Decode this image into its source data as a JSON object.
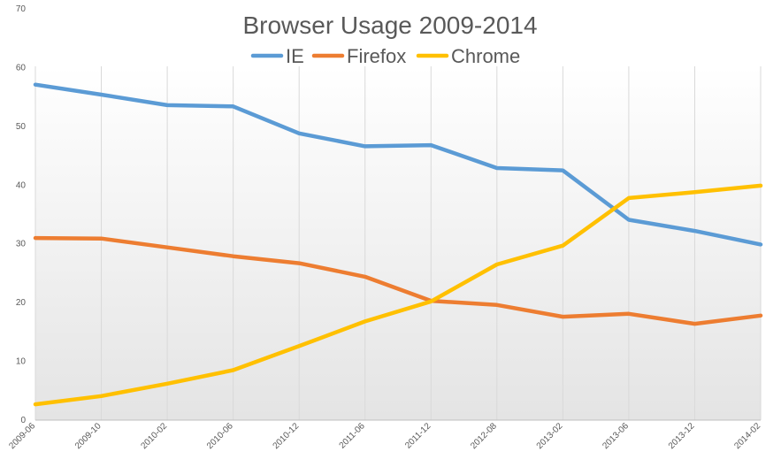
{
  "chart_data": {
    "type": "line",
    "title": "Browser Usage 2009-2014",
    "xlabel": "",
    "ylabel": "",
    "ylim": [
      0,
      70
    ],
    "yticks": [
      0,
      10,
      20,
      30,
      40,
      50,
      60,
      70
    ],
    "grid": "vertical",
    "legend_position": "top",
    "categories": [
      "2009-06",
      "2009-10",
      "2010-02",
      "2010-06",
      "2010-12",
      "2011-06",
      "2011-12",
      "2012-08",
      "2013-02",
      "2013-06",
      "2013-12",
      "2014-02"
    ],
    "series": [
      {
        "name": "IE",
        "color": "#5b9bd5",
        "values": [
          57.1,
          55.4,
          53.6,
          53.4,
          48.8,
          46.6,
          46.8,
          42.9,
          42.5,
          34.1,
          32.2,
          29.9
        ]
      },
      {
        "name": "Firefox",
        "color": "#ed7d31",
        "values": [
          31.0,
          30.9,
          29.4,
          27.9,
          26.7,
          24.4,
          20.3,
          19.6,
          17.6,
          18.1,
          16.4,
          17.8
        ]
      },
      {
        "name": "Chrome",
        "color": "#ffc000",
        "values": [
          2.7,
          4.1,
          6.2,
          8.5,
          12.6,
          16.8,
          20.2,
          26.5,
          29.7,
          37.8,
          38.8,
          39.9
        ]
      }
    ]
  }
}
